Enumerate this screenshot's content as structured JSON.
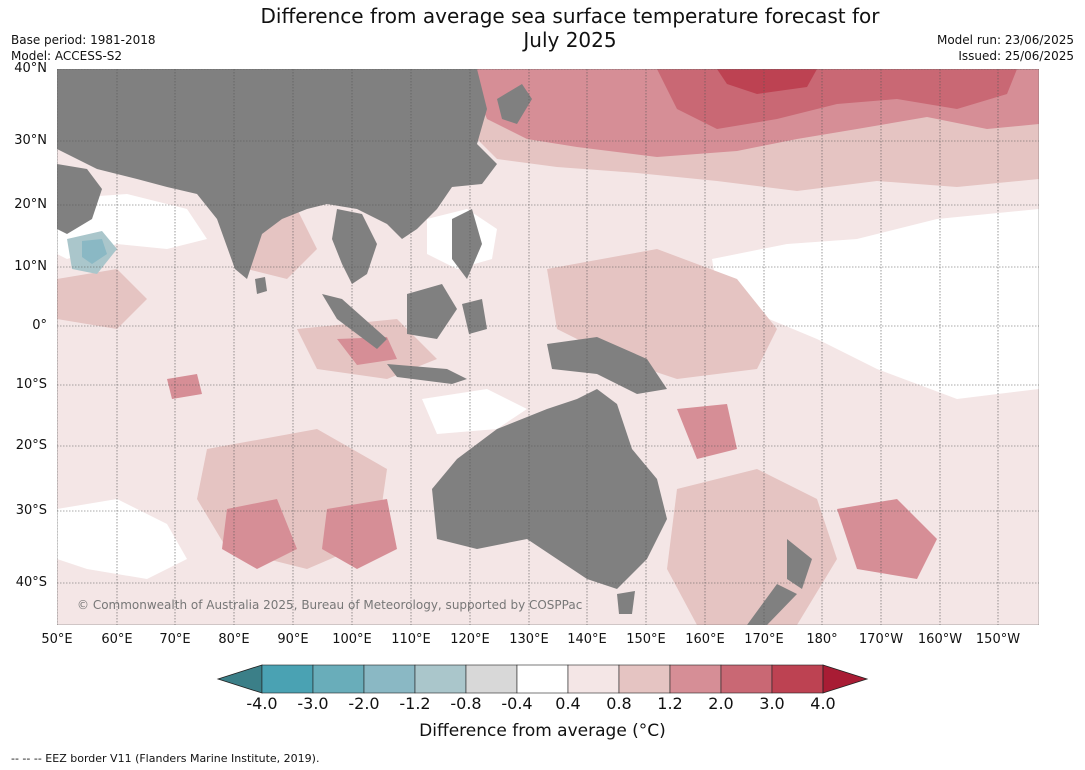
{
  "header": {
    "title_line1": "Difference from average sea surface temperature forecast for",
    "title_line2": "July 2025",
    "base_period": "Base period: 1981-2018",
    "model": "Model: ACCESS-S2",
    "model_run": "Model run: 23/06/2025",
    "issued": "Issued: 25/06/2025"
  },
  "map": {
    "copyright": "© Commonwealth of Australia 2025, Bureau of Meteorology, supported by COSPPac",
    "lat_labels": [
      "40°N",
      "30°N",
      "20°N",
      "10°N",
      "0°",
      "10°S",
      "20°S",
      "30°S",
      "40°S"
    ],
    "lon_labels": [
      "50°E",
      "60°E",
      "70°E",
      "80°E",
      "90°E",
      "100°E",
      "110°E",
      "120°E",
      "130°E",
      "140°E",
      "150°E",
      "160°E",
      "170°E",
      "180°",
      "170°W",
      "160°W",
      "150°W"
    ],
    "land_color": "#808080",
    "grid": true
  },
  "colorbar": {
    "ticks": [
      "-4.0",
      "-3.0",
      "-2.0",
      "-1.2",
      "-0.8",
      "-0.4",
      "0.4",
      "0.8",
      "1.2",
      "2.0",
      "3.0",
      "4.0"
    ],
    "colors": [
      "#3b7f88",
      "#4aa2b3",
      "#69adba",
      "#8ab8c4",
      "#aac6cb",
      "#d8d8d8",
      "#ffffff",
      "#f4e6e6",
      "#e5c4c2",
      "#d68e96",
      "#c96874",
      "#bd4252",
      "#a81c34"
    ],
    "label": "Difference from average (°C)"
  },
  "footer": "-- -- -- EEZ border V11 (Flanders Marine Institute, 2019)."
}
